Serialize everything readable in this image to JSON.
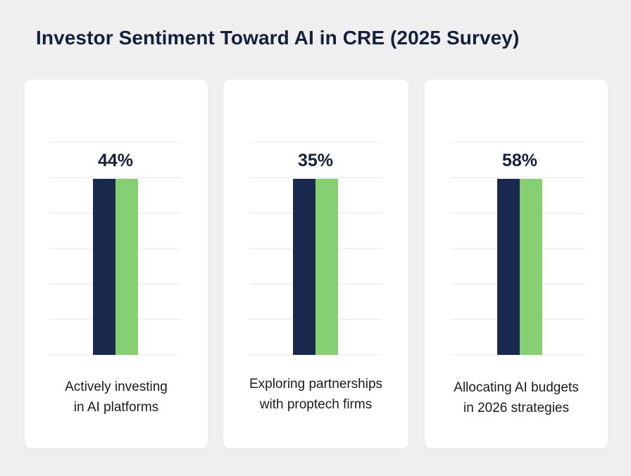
{
  "title": "Investor Sentiment Toward AI in CRE (2025 Survey)",
  "colors": {
    "background": "#efefef",
    "card": "#ffffff",
    "bar_dark": "#1a2a4e",
    "bar_green": "#86cf73",
    "grid": "#e6e6e6",
    "text": "#14213d"
  },
  "chart_data": [
    {
      "type": "bar",
      "value": 44,
      "value_label": "44%",
      "category": "Actively investing in AI platforms",
      "caption_lines": [
        "Actively investing",
        "in AI platforms"
      ]
    },
    {
      "type": "bar",
      "value": 35,
      "value_label": "35%",
      "category": "Exploring partnerships with proptech firms",
      "caption_lines": [
        "Exploring partnerships",
        "with proptech firms"
      ]
    },
    {
      "type": "bar",
      "value": 58,
      "value_label": "58%",
      "category": "Allocating AI budgets in 2026 strategies",
      "caption_lines": [
        "Allocating AI budgets",
        "in 2026 strategies"
      ]
    }
  ]
}
